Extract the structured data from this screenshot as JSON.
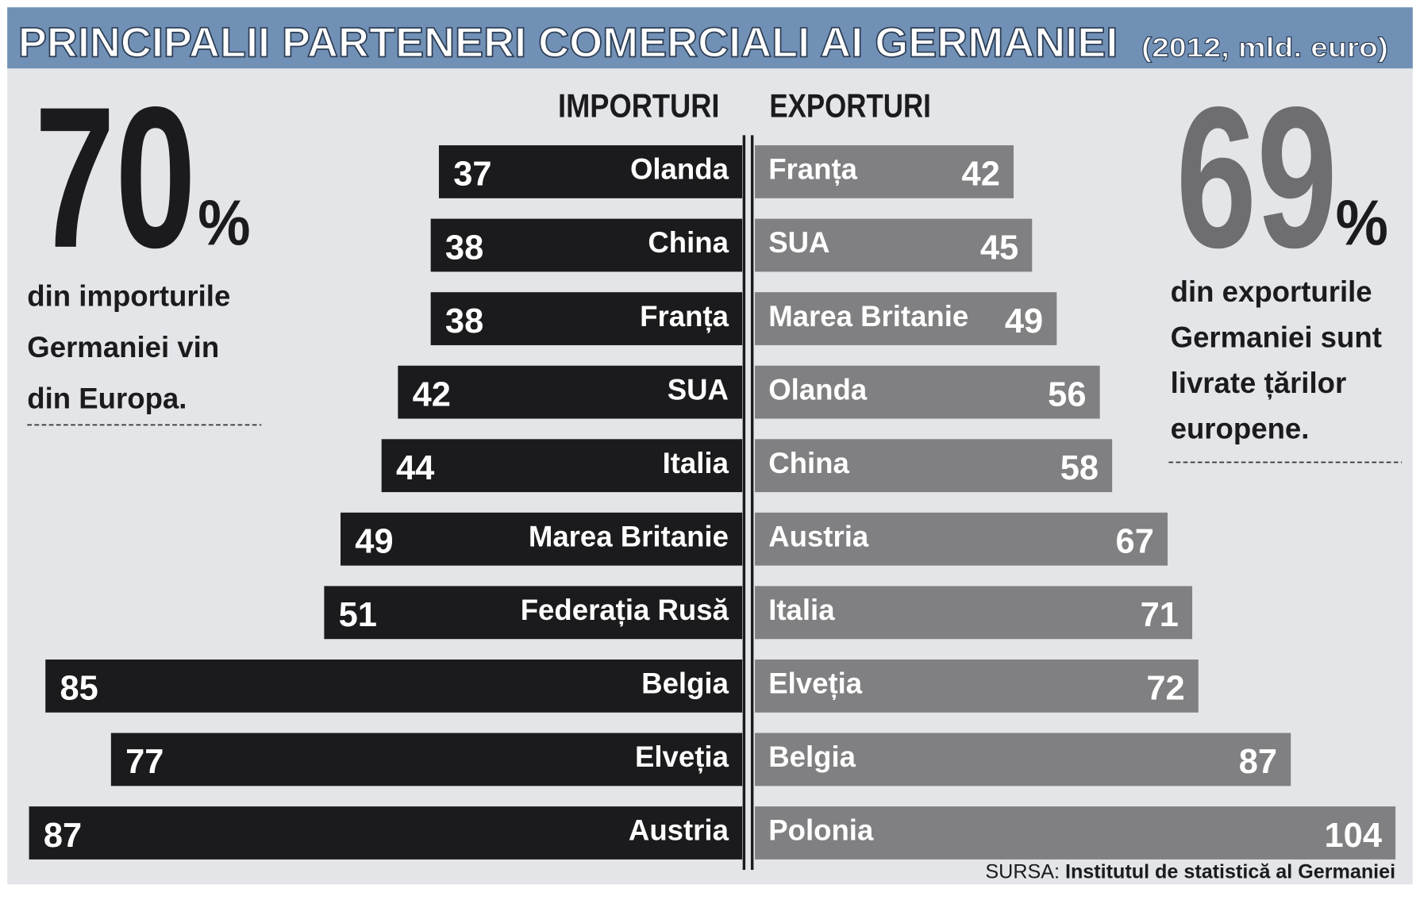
{
  "chart_data": {
    "type": "butterfly",
    "title": "PRINCIPALII PARTENERI COMERCIALI AI GERMANIEI",
    "subtitle": "(2012, mld. euro)",
    "series": [
      {
        "name": "IMPORTURI",
        "color": "#1b1b1d",
        "categories": [
          "Olanda",
          "China",
          "Franța",
          "SUA",
          "Italia",
          "Marea Britanie",
          "Federația Rusă",
          "Belgia",
          "Elveția",
          "Austria"
        ],
        "values": [
          37,
          38,
          38,
          42,
          44,
          49,
          51,
          85,
          77,
          87
        ],
        "xlim": [
          0,
          87
        ]
      },
      {
        "name": "EXPORTURI",
        "color": "#808083",
        "categories": [
          "Franța",
          "SUA",
          "Marea Britanie",
          "Olanda",
          "China",
          "Austria",
          "Italia",
          "Elveția",
          "Belgia",
          "Polonia"
        ],
        "values": [
          42,
          45,
          49,
          56,
          58,
          67,
          71,
          72,
          87,
          104
        ],
        "xlim": [
          0,
          104
        ]
      }
    ],
    "notes": [
      {
        "value": 70,
        "unit": "%",
        "color": "#1b1b1d",
        "lines": [
          "din importurile",
          "Germaniei vin",
          "din Europa."
        ]
      },
      {
        "value": 69,
        "unit": "%",
        "color": "#6e6e70",
        "lines": [
          "din exporturile",
          "Germaniei sunt",
          "livrate țărilor",
          "europene."
        ]
      }
    ],
    "source_label": "SURSA:",
    "source": "Institutul de statistică al Germaniei"
  }
}
